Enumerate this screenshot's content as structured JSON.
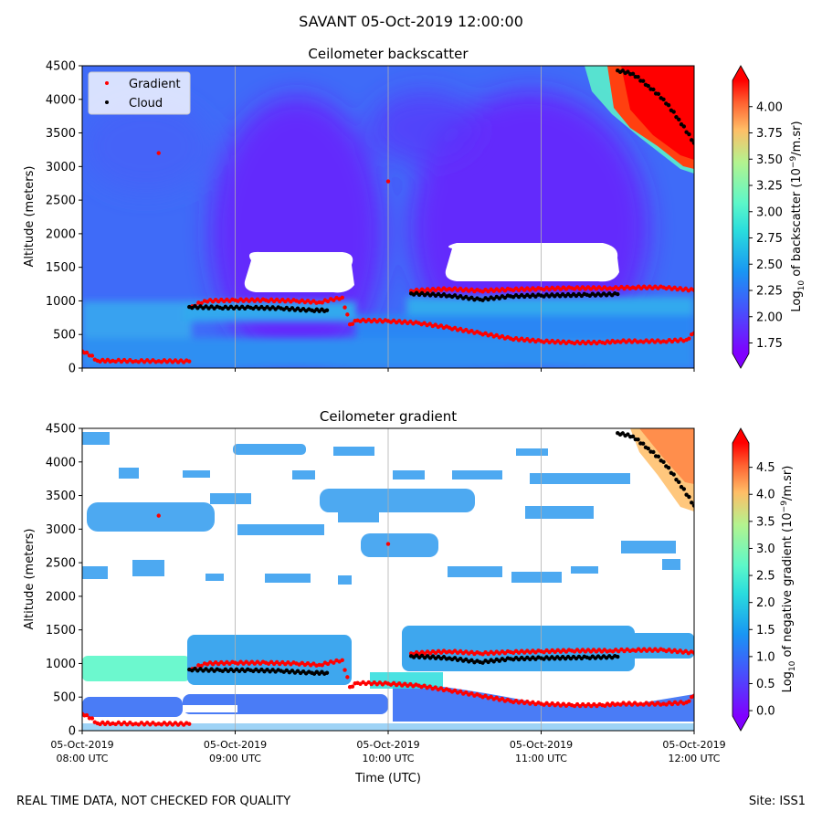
{
  "figure": {
    "title": "SAVANT 05-Oct-2019 12:00:00",
    "footer_left": "REAL TIME DATA, NOT CHECKED FOR QUALITY",
    "footer_right": "Site: ISS1"
  },
  "chart_data": [
    {
      "type": "heatmap",
      "title": "Ceilometer backscatter",
      "xlabel": "",
      "ylabel": "Altitude (meters)",
      "xlim": [
        8.0,
        12.0
      ],
      "ylim": [
        0,
        4500
      ],
      "x_ticks": [
        8,
        9,
        10,
        11,
        12
      ],
      "x_tick_labels": [
        "",
        "",
        "",
        "",
        ""
      ],
      "y_ticks": [
        0,
        500,
        1000,
        1500,
        2000,
        2500,
        3000,
        3500,
        4000,
        4500
      ],
      "grid": "vertical",
      "legend": {
        "placement": "top-left",
        "entries": [
          {
            "label": "Gradient",
            "color": "#ff0000",
            "marker": "dot"
          },
          {
            "label": "Cloud",
            "color": "#000000",
            "marker": "dot"
          }
        ]
      },
      "colorbar": {
        "label_prefix": "Log",
        "label_sub": "10",
        "label_mid": " of backscatter (10",
        "label_sup": "−9",
        "label_suffix": "/m.sr)",
        "vmin": 1.65,
        "vmax": 4.25,
        "extend": "both",
        "ticks": [
          1.75,
          2.0,
          2.25,
          2.5,
          2.75,
          3.0,
          3.25,
          3.5,
          3.75,
          4.0
        ],
        "tick_labels": [
          "1.75",
          "2.00",
          "2.25",
          "2.50",
          "2.75",
          "3.00",
          "3.25",
          "3.50",
          "3.75",
          "4.00"
        ]
      },
      "field_description_levels": {
        "background": 2.32,
        "upper_dark": 2.05,
        "boundary_layer": 2.55,
        "cloud_top_right": 4.1
      },
      "series": [
        {
          "name": "Gradient",
          "color": "#ff0000",
          "points": [
            [
              8.0,
              250
            ],
            [
              8.03,
              230
            ],
            [
              8.1,
              110
            ],
            [
              8.2,
              110
            ],
            [
              8.35,
              105
            ],
            [
              8.5,
              105
            ],
            [
              8.7,
              100
            ],
            [
              8.72,
              920
            ],
            [
              8.8,
              1000
            ],
            [
              9.0,
              1010
            ],
            [
              9.2,
              1010
            ],
            [
              9.4,
              1000
            ],
            [
              9.55,
              980
            ],
            [
              9.7,
              1050
            ],
            [
              9.75,
              650
            ],
            [
              9.8,
              710
            ],
            [
              10.0,
              700
            ],
            [
              10.2,
              670
            ],
            [
              10.4,
              600
            ],
            [
              10.6,
              520
            ],
            [
              10.8,
              440
            ],
            [
              11.0,
              400
            ],
            [
              11.2,
              380
            ],
            [
              11.4,
              380
            ],
            [
              11.5,
              400
            ],
            [
              11.65,
              400
            ],
            [
              11.8,
              400
            ],
            [
              11.95,
              420
            ],
            [
              12.0,
              520
            ],
            [
              10.15,
              1150
            ],
            [
              10.4,
              1180
            ],
            [
              10.6,
              1150
            ],
            [
              10.8,
              1170
            ],
            [
              11.0,
              1180
            ],
            [
              11.2,
              1190
            ],
            [
              11.45,
              1190
            ],
            [
              11.6,
              1200
            ],
            [
              11.8,
              1200
            ],
            [
              12.0,
              1160
            ],
            [
              8.5,
              3200
            ],
            [
              10.0,
              2780
            ]
          ]
        },
        {
          "name": "Cloud",
          "color": "#000000",
          "points": [
            [
              8.7,
              910
            ],
            [
              8.9,
              900
            ],
            [
              9.1,
              900
            ],
            [
              9.3,
              890
            ],
            [
              9.5,
              860
            ],
            [
              9.6,
              860
            ],
            [
              10.15,
              1110
            ],
            [
              10.4,
              1080
            ],
            [
              10.6,
              1020
            ],
            [
              10.8,
              1070
            ],
            [
              11.0,
              1080
            ],
            [
              11.3,
              1090
            ],
            [
              11.5,
              1100
            ],
            [
              11.5,
              4430
            ],
            [
              11.6,
              4380
            ],
            [
              11.7,
              4200
            ],
            [
              11.8,
              4000
            ],
            [
              11.9,
              3700
            ],
            [
              12.0,
              3350
            ]
          ]
        }
      ]
    },
    {
      "type": "heatmap",
      "title": "Ceilometer gradient",
      "xlabel": "Time (UTC)",
      "ylabel": "Altitude (meters)",
      "xlim": [
        8.0,
        12.0
      ],
      "ylim": [
        0,
        4500
      ],
      "x_ticks": [
        8,
        9,
        10,
        11,
        12
      ],
      "x_tick_labels": [
        "05-Oct-2019\n08:00 UTC",
        "05-Oct-2019\n09:00 UTC",
        "05-Oct-2019\n10:00 UTC",
        "05-Oct-2019\n11:00 UTC",
        "05-Oct-2019\n12:00 UTC"
      ],
      "y_ticks": [
        0,
        500,
        1000,
        1500,
        2000,
        2500,
        3000,
        3500,
        4000,
        4500
      ],
      "grid": "vertical",
      "colorbar": {
        "label_prefix": "Log",
        "label_sub": "10",
        "label_mid": " of negative gradient (10",
        "label_sup": "−9",
        "label_suffix": "/m.sr)",
        "vmin": -0.1,
        "vmax": 4.95,
        "extend": "both",
        "ticks": [
          0.0,
          0.5,
          1.0,
          1.5,
          2.0,
          2.5,
          3.0,
          3.5,
          4.0,
          4.5
        ],
        "tick_labels": [
          "0.0",
          "0.5",
          "1.0",
          "1.5",
          "2.0",
          "2.5",
          "3.0",
          "3.5",
          "4.0",
          "4.5"
        ]
      }
    }
  ]
}
